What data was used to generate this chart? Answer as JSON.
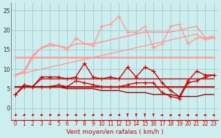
{
  "x": [
    0,
    1,
    2,
    3,
    4,
    5,
    6,
    7,
    8,
    9,
    10,
    11,
    12,
    13,
    14,
    15,
    16,
    17,
    18,
    19,
    20,
    21,
    22,
    23
  ],
  "series": [
    {
      "name": "rafales_max",
      "color": "#FF9999",
      "lw": 1.0,
      "marker": "+",
      "ms": 4,
      "values": [
        8.5,
        9.0,
        13.0,
        15.5,
        16.5,
        16.0,
        15.0,
        18.0,
        16.5,
        16.0,
        21.0,
        21.5,
        23.5,
        19.5,
        19.5,
        21.0,
        15.5,
        16.5,
        21.0,
        21.5,
        16.5,
        18.0,
        18.0,
        18.0
      ]
    },
    {
      "name": "rafales_moy_high",
      "color": "#FF9999",
      "lw": 1.2,
      "marker": null,
      "ms": 0,
      "values": [
        8.5,
        9.5,
        13.5,
        15.5,
        16.0,
        16.0,
        15.5,
        16.5,
        16.5,
        16.5,
        17.0,
        17.5,
        18.0,
        18.5,
        19.0,
        19.5,
        19.5,
        19.5,
        19.5,
        20.0,
        20.5,
        21.0,
        18.0,
        18.5
      ]
    },
    {
      "name": "rafales_moy_low",
      "color": "#FF9999",
      "lw": 1.8,
      "marker": null,
      "ms": 0,
      "values": [
        13.0,
        13.0,
        13.0,
        13.0,
        13.0,
        13.0,
        13.0,
        13.0,
        13.0,
        13.0,
        13.0,
        13.0,
        13.0,
        13.0,
        13.0,
        13.0,
        13.0,
        13.0,
        13.0,
        13.0,
        13.0,
        13.0,
        13.0,
        13.0
      ]
    },
    {
      "name": "vent_moy_trend_high",
      "color": "#FF9999",
      "lw": 1.0,
      "marker": null,
      "ms": 0,
      "values": [
        8.5,
        9.0,
        9.5,
        10.0,
        10.5,
        11.0,
        11.5,
        12.0,
        12.5,
        13.0,
        13.5,
        14.0,
        14.5,
        15.0,
        15.5,
        16.0,
        16.5,
        17.0,
        17.5,
        18.0,
        18.5,
        19.0,
        17.5,
        18.0
      ]
    },
    {
      "name": "vent_inst",
      "color": "#CC0000",
      "lw": 1.0,
      "marker": "+",
      "ms": 4,
      "values": [
        3.5,
        6.0,
        5.5,
        8.0,
        8.0,
        8.0,
        7.5,
        8.0,
        11.5,
        8.0,
        7.5,
        8.0,
        7.5,
        10.5,
        8.0,
        10.5,
        9.5,
        6.5,
        4.5,
        3.0,
        7.0,
        9.5,
        8.5,
        8.5
      ]
    },
    {
      "name": "vent_moy_high",
      "color": "#CC0000",
      "lw": 1.0,
      "marker": null,
      "ms": 0,
      "values": [
        5.5,
        5.5,
        5.5,
        7.5,
        7.5,
        7.5,
        7.5,
        7.5,
        7.5,
        7.5,
        7.5,
        7.5,
        7.5,
        7.5,
        7.5,
        7.5,
        7.5,
        7.5,
        7.5,
        7.5,
        7.5,
        7.5,
        7.5,
        7.5
      ]
    },
    {
      "name": "vent_moy_low",
      "color": "#CC0000",
      "lw": 1.5,
      "marker": null,
      "ms": 0,
      "values": [
        5.5,
        5.5,
        5.5,
        5.5,
        5.5,
        5.5,
        5.5,
        5.5,
        5.5,
        5.5,
        5.5,
        5.5,
        5.5,
        5.5,
        5.5,
        5.5,
        5.5,
        5.5,
        5.5,
        5.5,
        5.5,
        5.5,
        5.5,
        5.5
      ]
    },
    {
      "name": "vent_min",
      "color": "#CC0000",
      "lw": 1.0,
      "marker": "+",
      "ms": 4,
      "values": [
        3.5,
        5.5,
        5.5,
        5.5,
        5.5,
        6.0,
        5.5,
        7.0,
        6.5,
        6.0,
        5.5,
        5.5,
        5.5,
        6.0,
        6.5,
        6.5,
        6.5,
        4.0,
        3.0,
        2.5,
        6.5,
        7.0,
        8.0,
        8.5
      ]
    },
    {
      "name": "vent_trend_low",
      "color": "#990000",
      "lw": 1.0,
      "marker": null,
      "ms": 0,
      "values": [
        5.5,
        5.5,
        5.5,
        5.5,
        5.5,
        5.5,
        5.0,
        5.0,
        5.0,
        5.0,
        4.5,
        4.5,
        4.5,
        4.0,
        4.0,
        4.0,
        3.5,
        3.5,
        3.5,
        3.0,
        3.0,
        3.0,
        3.5,
        3.5
      ]
    }
  ],
  "wind_arrows": {
    "x": [
      0,
      1,
      2,
      3,
      4,
      5,
      6,
      7,
      8,
      9,
      10,
      11,
      12,
      13,
      14,
      15,
      16,
      17,
      18,
      19,
      20,
      21,
      22,
      23
    ],
    "angles": [
      225,
      225,
      225,
      225,
      225,
      225,
      225,
      225,
      225,
      225,
      225,
      225,
      225,
      180,
      180,
      180,
      180,
      270,
      270,
      270,
      270,
      270,
      270,
      270
    ]
  },
  "xlabel": "Vent moyen/en rafales ( km/h )",
  "xlabel_color": "#CC0000",
  "xlim": [
    -0.5,
    23.5
  ],
  "ylim": [
    0,
    27
  ],
  "yticks": [
    0,
    5,
    10,
    15,
    20,
    25
  ],
  "xticks": [
    0,
    1,
    2,
    3,
    4,
    5,
    6,
    7,
    8,
    9,
    10,
    11,
    12,
    13,
    14,
    15,
    16,
    17,
    18,
    19,
    20,
    21,
    22,
    23
  ],
  "bg_color": "#CCEEEE",
  "grid_color": "#AACCCC",
  "fig_width": 3.2,
  "fig_height": 2.0
}
